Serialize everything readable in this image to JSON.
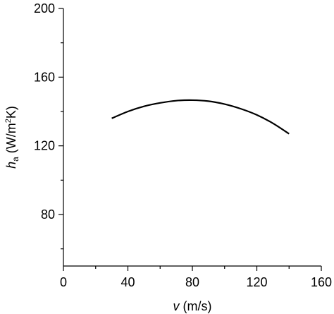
{
  "chart_data": {
    "type": "line",
    "title": "",
    "xlabel": {
      "symbol": "v",
      "unit": " (m/s)"
    },
    "ylabel": {
      "symbol": "h",
      "subscript": "a",
      "unit_open": " (W/m",
      "superscript": "2",
      "unit_close": "K)"
    },
    "xlim": [
      0,
      160
    ],
    "ylim": [
      50,
      200
    ],
    "x_ticks": [
      0,
      40,
      80,
      120,
      160
    ],
    "x_minor_ticks": [
      20,
      60,
      100,
      140
    ],
    "y_ticks": [
      80,
      120,
      160,
      200
    ],
    "y_minor_ticks": [
      60,
      100,
      140,
      180
    ],
    "grid": false,
    "series": [
      {
        "color": "#000000",
        "points": [
          [
            30,
            136
          ],
          [
            40,
            140
          ],
          [
            50,
            143
          ],
          [
            60,
            145
          ],
          [
            70,
            146.3
          ],
          [
            80,
            146.6
          ],
          [
            90,
            146
          ],
          [
            100,
            144.3
          ],
          [
            110,
            141.6
          ],
          [
            120,
            138
          ],
          [
            130,
            133.1
          ],
          [
            140,
            127
          ]
        ]
      }
    ]
  }
}
